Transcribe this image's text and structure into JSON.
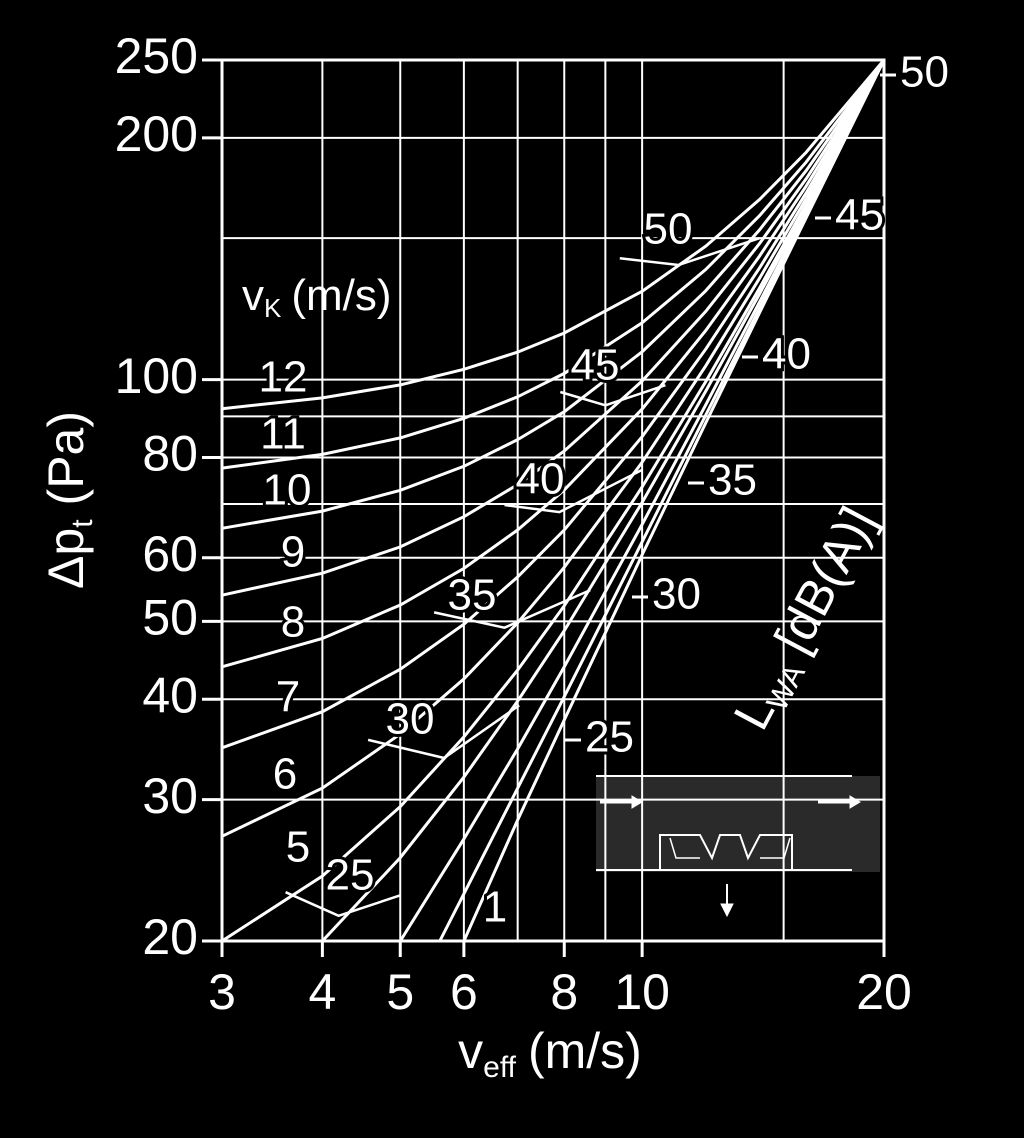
{
  "chart_data": {
    "type": "line",
    "x_scale": "log",
    "y_scale": "log",
    "xlim": [
      3,
      20
    ],
    "ylim": [
      20,
      250
    ],
    "xticks": [
      3,
      4,
      5,
      6,
      8,
      10,
      20
    ],
    "yticks": [
      20,
      30,
      40,
      50,
      60,
      80,
      100,
      200,
      250
    ],
    "xgrid": [
      3,
      4,
      5,
      6,
      7,
      8,
      9,
      10,
      15,
      20
    ],
    "ygrid": [
      20,
      30,
      40,
      50,
      60,
      70,
      80,
      90,
      100,
      150,
      200,
      250
    ],
    "color": "#ffffff",
    "background": "#000000",
    "x_label": {
      "main": "v",
      "sub": "eff",
      "unit": "(m/s)"
    },
    "y_label": {
      "main": "Δp",
      "sub": "t",
      "unit": "(Pa)"
    },
    "curve_title": {
      "main": "v",
      "sub": "K",
      "unit": "(m/s)"
    },
    "noise_title": {
      "main": "L",
      "sub": "WA",
      "unit": "[dB(A)]"
    },
    "series": [
      {
        "name": "12",
        "x": [
          3,
          4,
          5,
          6,
          7,
          8,
          10,
          12,
          14,
          16,
          20
        ],
        "values": [
          92.0,
          94.9,
          98.5,
          103.0,
          108.2,
          114.3,
          128.8,
          146.6,
          167.6,
          191.8,
          250
        ]
      },
      {
        "name": "11",
        "x": [
          3,
          4,
          5,
          6,
          7,
          8,
          10,
          12,
          14,
          16,
          20
        ],
        "values": [
          77.6,
          80.7,
          84.6,
          89.5,
          95.2,
          101.8,
          117.7,
          137.1,
          160.0,
          186.5,
          250
        ]
      },
      {
        "name": "10",
        "x": [
          3,
          4,
          5,
          6,
          7,
          8,
          10,
          12,
          14,
          16,
          20
        ],
        "values": [
          65.3,
          68.6,
          72.8,
          78.0,
          84.2,
          91.2,
          108.3,
          129.0,
          153.6,
          182.0,
          250
        ]
      },
      {
        "name": "9",
        "x": [
          3,
          4,
          5,
          6,
          7,
          8,
          10,
          12,
          14,
          16,
          20
        ],
        "values": [
          53.9,
          57.4,
          61.9,
          67.5,
          74.0,
          81.5,
          99.6,
          121.6,
          147.7,
          177.8,
          250
        ]
      },
      {
        "name": "8",
        "x": [
          3,
          4,
          5,
          6,
          7,
          8,
          10,
          12,
          14,
          16,
          20
        ],
        "values": [
          43.9,
          47.6,
          52.4,
          58.2,
          65.0,
          72.9,
          91.9,
          115.1,
          142.5,
          174.1,
          250
        ]
      },
      {
        "name": "7",
        "x": [
          3,
          4,
          5,
          6,
          7,
          8,
          10,
          12,
          14,
          16,
          20
        ],
        "values": [
          34.8,
          38.6,
          43.6,
          49.6,
          56.8,
          65.0,
          84.9,
          109.1,
          137.7,
          170.7,
          250
        ]
      },
      {
        "name": "6",
        "x": [
          3,
          4,
          5,
          6,
          7,
          8,
          10,
          12,
          14,
          16,
          20
        ],
        "values": [
          27.0,
          31.0,
          36.2,
          42.4,
          49.8,
          58.4,
          78.9,
          104.0,
          133.7,
          167.9,
          250
        ]
      },
      {
        "name": "5",
        "x": [
          3,
          4,
          5,
          6,
          7,
          8,
          10,
          12,
          14,
          16,
          20
        ],
        "values": [
          20.0,
          24.1,
          29.4,
          35.9,
          43.5,
          52.3,
          73.5,
          99.4,
          130.0,
          165.3,
          250
        ]
      },
      {
        "name": null,
        "x": [
          4,
          5,
          6,
          7,
          8,
          10,
          12,
          14,
          16,
          20
        ],
        "values": [
          20.0,
          25.4,
          32.0,
          39.8,
          48.7,
          70.3,
          96.7,
          127.8,
          163.7,
          250
        ]
      },
      {
        "name": null,
        "x": [
          5,
          6,
          7,
          8,
          10,
          12,
          14,
          16,
          20
        ],
        "values": [
          20.0,
          26.8,
          34.7,
          43.9,
          66.0,
          93.0,
          124.9,
          161.7,
          250
        ]
      },
      {
        "name": null,
        "x": [
          5.6,
          6,
          7,
          8,
          10,
          12,
          14,
          16,
          20
        ],
        "values": [
          20.0,
          22.9,
          31.0,
          40.3,
          62.8,
          90.3,
          122.7,
          160.1,
          250
        ]
      },
      {
        "name": "1",
        "x": [
          6,
          7,
          8,
          10,
          12,
          14,
          16,
          20
        ],
        "values": [
          20.0,
          28.3,
          37.7,
          60.5,
          88.3,
          121.1,
          159.0,
          250
        ]
      }
    ],
    "noise_series": [
      {
        "name": "25",
        "x": [
          3.6,
          4.19,
          5.0
        ],
        "values": [
          23.0,
          21.5,
          22.8
        ]
      },
      {
        "name": "30",
        "x": [
          4.56,
          5.67,
          7.03
        ],
        "values": [
          35.6,
          33.8,
          39.3
        ]
      },
      {
        "name": "35",
        "x": [
          5.51,
          6.74,
          8.62
        ],
        "values": [
          51.3,
          49.1,
          54.7
        ]
      },
      {
        "name": "40",
        "x": [
          6.74,
          7.89,
          10.0
        ],
        "values": [
          69.8,
          68.4,
          77.2
        ]
      },
      {
        "name": "45",
        "x": [
          7.91,
          9.0,
          10.69
        ],
        "values": [
          96.5,
          92.9,
          98.4
        ]
      },
      {
        "name": "50",
        "x": [
          9.38,
          11.1,
          14.0
        ],
        "values": [
          141.6,
          138.9,
          150.0
        ]
      }
    ]
  }
}
